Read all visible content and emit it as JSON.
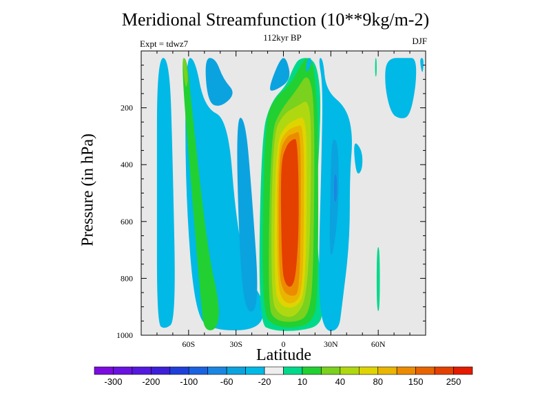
{
  "chart_data": {
    "type": "heatmap",
    "title": "Meridional Streamfunction (10**9kg/m-2)",
    "subtitle": "112kyr BP",
    "left_label": "Expt = tdwz7",
    "right_label": "DJF",
    "xlabel": "Latitude",
    "ylabel": "Pressure (in hPa)",
    "xlim": [
      -90,
      90
    ],
    "ylim": [
      1000,
      0
    ],
    "x_ticks": [
      {
        "value": -60,
        "label": "60S"
      },
      {
        "value": -30,
        "label": "30S"
      },
      {
        "value": 0,
        "label": "0"
      },
      {
        "value": 30,
        "label": "30N"
      },
      {
        "value": 60,
        "label": "60N"
      }
    ],
    "y_ticks": [
      {
        "value": 200,
        "label": "200"
      },
      {
        "value": 400,
        "label": "400"
      },
      {
        "value": 600,
        "label": "600"
      },
      {
        "value": 800,
        "label": "800"
      },
      {
        "value": 1000,
        "label": "1000"
      }
    ],
    "grid": false,
    "background_color": "#e8e8e8",
    "colorbar": {
      "placement": "bottom",
      "colors": [
        "#7a0ce0",
        "#6a12df",
        "#5518de",
        "#3d1fd8",
        "#1f3fd8",
        "#1a63e0",
        "#1b86e2",
        "#0ba3df",
        "#00b9e6",
        "#eeeeee",
        "#00d98a",
        "#22d032",
        "#7ad11e",
        "#b0d810",
        "#e0d400",
        "#e9b500",
        "#ec8b00",
        "#e86400",
        "#e44000",
        "#e31b00"
      ],
      "labels": [
        "-300",
        "-200",
        "-100",
        "-60",
        "-20",
        "10",
        "40",
        "80",
        "150",
        "250"
      ]
    },
    "blobs": [
      {
        "color": "#0ba3df",
        "pts": [
          [
            -78,
            25
          ],
          [
            -74,
            25
          ],
          [
            -73,
            300
          ],
          [
            -73,
            700
          ],
          [
            -73,
            930
          ],
          [
            -78,
            930
          ],
          [
            -78,
            600
          ]
        ]
      },
      {
        "color": "#00b9e6",
        "pts": [
          [
            -80,
            25
          ],
          [
            -72,
            25
          ],
          [
            -70,
            400
          ],
          [
            -68,
            950
          ],
          [
            -75,
            980
          ],
          [
            -80,
            960
          ],
          [
            -80,
            500
          ]
        ]
      },
      {
        "color": "#00b9e6",
        "pts": [
          [
            -62,
            25
          ],
          [
            -56,
            25
          ],
          [
            -50,
            200
          ],
          [
            -35,
            240
          ],
          [
            -30,
            600
          ],
          [
            -22,
            800
          ],
          [
            -12,
            880
          ],
          [
            -14,
            980
          ],
          [
            -44,
            985
          ],
          [
            -56,
            930
          ],
          [
            -62,
            500
          ]
        ]
      },
      {
        "color": "#0ba3df",
        "pts": [
          [
            -50,
            25
          ],
          [
            -43,
            25
          ],
          [
            -38,
            100
          ],
          [
            -30,
            150
          ],
          [
            -40,
            200
          ],
          [
            -48,
            180
          ]
        ]
      },
      {
        "color": "#0ba3df",
        "pts": [
          [
            -30,
            230
          ],
          [
            -24,
            240
          ],
          [
            -20,
            500
          ],
          [
            -15,
            900
          ],
          [
            -24,
            930
          ],
          [
            -28,
            700
          ]
        ]
      },
      {
        "color": "#22d032",
        "pts": [
          [
            -65,
            25
          ],
          [
            -61,
            25
          ],
          [
            -58,
            200
          ],
          [
            -48,
            700
          ],
          [
            -40,
            900
          ],
          [
            -42,
            980
          ],
          [
            -50,
            985
          ],
          [
            -52,
            900
          ],
          [
            -58,
            500
          ]
        ]
      },
      {
        "color": "#7ad11e",
        "pts": [
          [
            -64,
            25
          ],
          [
            -62,
            25
          ],
          [
            -60,
            100
          ],
          [
            -62,
            140
          ]
        ]
      },
      {
        "color": "#0ba3df",
        "pts": [
          [
            -2,
            25
          ],
          [
            2,
            25
          ],
          [
            5,
            100
          ],
          [
            -5,
            140
          ],
          [
            -10,
            140
          ]
        ]
      },
      {
        "color": "#00d98a",
        "pts": [
          [
            10,
            25
          ],
          [
            18,
            25
          ],
          [
            22,
            70
          ],
          [
            24,
            200
          ],
          [
            20,
            600
          ],
          [
            25,
            880
          ],
          [
            24,
            965
          ],
          [
            10,
            985
          ],
          [
            -6,
            985
          ],
          [
            -16,
            960
          ],
          [
            -14,
            300
          ],
          [
            -8,
            180
          ],
          [
            2,
            120
          ],
          [
            6,
            60
          ]
        ]
      },
      {
        "color": "#22d032",
        "pts": [
          [
            14,
            25
          ],
          [
            18,
            25
          ],
          [
            20,
            100
          ],
          [
            22,
            240
          ],
          [
            22,
            880
          ],
          [
            18,
            955
          ],
          [
            8,
            975
          ],
          [
            -5,
            970
          ],
          [
            -14,
            925
          ],
          [
            -12,
            250
          ],
          [
            -6,
            170
          ],
          [
            4,
            120
          ],
          [
            10,
            60
          ]
        ]
      },
      {
        "color": "#7ad11e",
        "pts": [
          [
            16,
            70
          ],
          [
            20,
            200
          ],
          [
            19,
            800
          ],
          [
            16,
            930
          ],
          [
            8,
            955
          ],
          [
            -5,
            950
          ],
          [
            -10,
            900
          ],
          [
            -8,
            290
          ],
          [
            -2,
            210
          ],
          [
            8,
            140
          ]
        ]
      },
      {
        "color": "#b0d810",
        "pts": [
          [
            16,
            170
          ],
          [
            18,
            300
          ],
          [
            16,
            850
          ],
          [
            8,
            940
          ],
          [
            -3,
            930
          ],
          [
            -8,
            870
          ],
          [
            -7,
            300
          ],
          [
            0,
            220
          ],
          [
            10,
            190
          ]
        ]
      },
      {
        "color": "#e0d400",
        "pts": [
          [
            14,
            230
          ],
          [
            15,
            400
          ],
          [
            14,
            850
          ],
          [
            8,
            905
          ],
          [
            -2,
            900
          ],
          [
            -6,
            830
          ],
          [
            -5,
            320
          ],
          [
            2,
            260
          ],
          [
            8,
            240
          ]
        ]
      },
      {
        "color": "#e9b500",
        "pts": [
          [
            13,
            260
          ],
          [
            13,
            600
          ],
          [
            12,
            850
          ],
          [
            7,
            890
          ],
          [
            0,
            885
          ],
          [
            -4,
            820
          ],
          [
            -4,
            340
          ],
          [
            2,
            280
          ],
          [
            8,
            265
          ]
        ]
      },
      {
        "color": "#ec8b00",
        "pts": [
          [
            11,
            280
          ],
          [
            11,
            600
          ],
          [
            10,
            850
          ],
          [
            6,
            865
          ],
          [
            0,
            850
          ],
          [
            -3,
            780
          ],
          [
            -3,
            360
          ],
          [
            2,
            300
          ],
          [
            7,
            290
          ]
        ]
      },
      {
        "color": "#e44000",
        "pts": [
          [
            9,
            310
          ],
          [
            10,
            600
          ],
          [
            8,
            790
          ],
          [
            5,
            835
          ],
          [
            1,
            820
          ],
          [
            -1,
            760
          ],
          [
            -2,
            400
          ],
          [
            2,
            330
          ],
          [
            6,
            310
          ]
        ]
      },
      {
        "color": "#00b9e6",
        "pts": [
          [
            22,
            25
          ],
          [
            25,
            25
          ],
          [
            27,
            140
          ],
          [
            40,
            200
          ],
          [
            44,
            300
          ],
          [
            42,
            430
          ],
          [
            42,
            670
          ],
          [
            37,
            900
          ],
          [
            35,
            985
          ],
          [
            25,
            985
          ],
          [
            22,
            820
          ],
          [
            24,
            400
          ],
          [
            25,
            120
          ]
        ]
      },
      {
        "color": "#00b9e6",
        "pts": [
          [
            44,
            310
          ],
          [
            50,
            350
          ],
          [
            50,
            420
          ],
          [
            46,
            440
          ]
        ]
      },
      {
        "color": "#0ba3df",
        "pts": [
          [
            31,
            300
          ],
          [
            35,
            330
          ],
          [
            35,
            560
          ],
          [
            31,
            730
          ],
          [
            29,
            700
          ],
          [
            30,
            400
          ]
        ]
      },
      {
        "color": "#1b86e2",
        "pts": [
          [
            32,
            430
          ],
          [
            34,
            440
          ],
          [
            34,
            520
          ],
          [
            32,
            540
          ]
        ]
      },
      {
        "color": "#00b9e6",
        "pts": [
          [
            15,
            25
          ],
          [
            18,
            25
          ],
          [
            17,
            60
          ],
          [
            14,
            80
          ]
        ]
      },
      {
        "color": "#00d98a",
        "pts": [
          [
            58,
            25
          ],
          [
            59,
            25
          ],
          [
            59,
            90
          ],
          [
            58,
            90
          ]
        ]
      },
      {
        "color": "#00d98a",
        "pts": [
          [
            59,
            690
          ],
          [
            61,
            690
          ],
          [
            61,
            915
          ],
          [
            59,
            915
          ]
        ]
      },
      {
        "color": "#00b9e6",
        "pts": [
          [
            65,
            25
          ],
          [
            78,
            25
          ],
          [
            84,
            25
          ],
          [
            84,
            120
          ],
          [
            80,
            230
          ],
          [
            74,
            240
          ],
          [
            68,
            220
          ],
          [
            64,
            120
          ]
        ]
      },
      {
        "color": "#00b9e6",
        "pts": [
          [
            86,
            25
          ],
          [
            89,
            25
          ],
          [
            88,
            90
          ]
        ]
      }
    ]
  }
}
